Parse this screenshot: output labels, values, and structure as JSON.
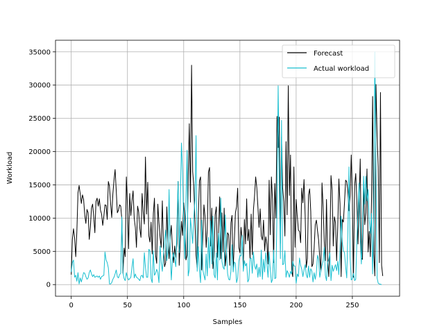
{
  "chart_data": {
    "type": "line",
    "title": "",
    "xlabel": "Samples",
    "ylabel": "Workload",
    "xlim": [
      -14,
      292
    ],
    "ylim": [
      -1750,
      36750
    ],
    "xticks": [
      0,
      50,
      100,
      150,
      200,
      250
    ],
    "xtick_labels": [
      "0",
      "50",
      "100",
      "150",
      "200",
      "250"
    ],
    "yticks": [
      0,
      5000,
      10000,
      15000,
      20000,
      25000,
      30000,
      35000
    ],
    "ytick_labels": [
      "0",
      "5000",
      "10000",
      "15000",
      "20000",
      "25000",
      "30000",
      "35000"
    ],
    "grid": true,
    "legend_position": "upper-right",
    "series": [
      {
        "name": "Forecast",
        "color": "#000000",
        "values": [
          1500,
          6800,
          8400,
          7000,
          4200,
          8000,
          13800,
          14900,
          13600,
          12200,
          13500,
          12800,
          10500,
          9200,
          11300,
          10800,
          6800,
          8600,
          11500,
          12100,
          10200,
          7800,
          12500,
          13000,
          11800,
          12900,
          11200,
          10600,
          8900,
          10300,
          12000,
          11900,
          9800,
          15500,
          14800,
          12200,
          10100,
          13600,
          15700,
          17300,
          14200,
          10800,
          11200,
          12000,
          11800,
          9800,
          1700,
          5500,
          4200,
          16200,
          11900,
          5400,
          13700,
          10400,
          12600,
          14100,
          10000,
          8600,
          5600,
          11800,
          10900,
          8400,
          7100,
          13700,
          10900,
          9100,
          19200,
          10600,
          15400,
          7300,
          6400,
          9400,
          4600,
          10700,
          13000,
          4400,
          3200,
          12100,
          9300,
          7100,
          5600,
          12600,
          5800,
          2700,
          3300,
          11700,
          6500,
          3900,
          7200,
          8900,
          5400,
          3300,
          5800,
          4100,
          6200,
          15500,
          2900,
          6500,
          9500,
          7400,
          12300,
          10200,
          3700,
          4400,
          16300,
          24200,
          12400,
          33000,
          17000,
          14800,
          9600,
          4400,
          2600,
          9900,
          15600,
          16200,
          2200,
          7300,
          12000,
          10200,
          5600,
          8300,
          16900,
          17600,
          5800,
          11500,
          2400,
          4200,
          10500,
          11700,
          4100,
          8200,
          13200,
          3900,
          10800,
          4900,
          11500,
          2800,
          4600,
          7800,
          7500,
          2900,
          9300,
          10400,
          2300,
          6400,
          10800,
          11700,
          14500,
          5600,
          4800,
          8600,
          6700,
          2900,
          9800,
          6100,
          12900,
          6600,
          8300,
          3900,
          10600,
          4500,
          11200,
          13300,
          16200,
          14600,
          11700,
          8600,
          11400,
          7300,
          6700,
          9700,
          5100,
          7200,
          6100,
          3100,
          15700,
          7500,
          16200,
          12800,
          3300,
          15200,
          10000,
          25300,
          20600,
          25200,
          6200,
          22200,
          14600,
          12500,
          7300,
          21500,
          10500,
          29900,
          13400,
          19500,
          2100,
          1200,
          17700,
          5600,
          12800,
          10300,
          8200,
          8000,
          6300,
          14500,
          12300,
          15800,
          10500,
          2600,
          3900,
          13500,
          14400,
          11000,
          2700,
          3100,
          5500,
          9000,
          9700,
          8100,
          6700,
          4000,
          2000,
          15300,
          11700,
          6500,
          3600,
          12800,
          3500,
          1200,
          6100,
          16400,
          14200,
          5800,
          10200,
          9300,
          3600,
          8700,
          15900,
          12200,
          1200,
          9800,
          9400,
          12300,
          15700,
          15500,
          14000,
          11100,
          13400,
          19500,
          12700,
          1100,
          14900,
          16700,
          12600,
          6100,
          12400,
          18900,
          4000,
          3800,
          15100,
          9000,
          10800,
          17400,
          4900,
          8000,
          4200,
          12500,
          28300,
          4700,
          1300,
          30100,
          22300,
          17700,
          3300,
          28900,
          2900,
          1300
        ]
      },
      {
        "name": "Actual workload",
        "color": "#17becf",
        "values": [
          1900,
          3300,
          3700,
          1100,
          1400,
          500,
          1800,
          100,
          1000,
          400,
          1100,
          1800,
          1700,
          1200,
          800,
          1000,
          1800,
          2200,
          1600,
          1200,
          1500,
          1100,
          1200,
          1300,
          1100,
          1300,
          800,
          1200,
          1300,
          1400,
          4900,
          3700,
          3300,
          2500,
          100,
          100,
          300,
          800,
          1100,
          1600,
          2200,
          1200,
          1000,
          1500,
          1700,
          10200,
          1800,
          900,
          600,
          1800,
          1100,
          700,
          900,
          1100,
          2600,
          3900,
          1000,
          1600,
          1100,
          1000,
          800,
          600,
          1300,
          1400,
          1000,
          4800,
          2600,
          1100,
          1100,
          5300,
          5100,
          900,
          300,
          5100,
          1400,
          1700,
          2300,
          1800,
          300,
          5800,
          3300,
          2000,
          4400,
          6600,
          8200,
          3600,
          5100,
          14300,
          4800,
          700,
          3900,
          4800,
          3800,
          2700,
          8700,
          15500,
          4800,
          12500,
          21300,
          17000,
          9200,
          3900,
          12700,
          20200,
          1300,
          2300,
          10000,
          8200,
          6200,
          10100,
          12700,
          22400,
          2000,
          5700,
          2100,
          300,
          9700,
          2200,
          1400,
          700,
          4600,
          1300,
          7100,
          2500,
          9600,
          3100,
          10300,
          1500,
          1000,
          4800,
          700,
          7700,
          3700,
          13000,
          3500,
          2600,
          2300,
          10500,
          5500,
          1700,
          800,
          700,
          2000,
          6000,
          1900,
          3400,
          3200,
          300,
          1000,
          3500,
          4400,
          4300,
          7400,
          2000,
          3600,
          2800,
          3200,
          400,
          800,
          3900,
          4000,
          1700,
          4900,
          2900,
          2300,
          3100,
          1100,
          2600,
          1200,
          5200,
          800,
          3800,
          1900,
          4800,
          3200,
          1100,
          4900,
          2300,
          300,
          800,
          5200,
          900,
          1000,
          11300,
          29900,
          15800,
          3900,
          24700,
          3000,
          3100,
          5100,
          1100,
          2100,
          1700,
          1100,
          2000,
          1600,
          3500,
          2800,
          2800,
          200,
          1600,
          1200,
          4000,
          2900,
          2300,
          1200,
          2200,
          3000,
          1500,
          1000,
          2800,
          1100,
          2400,
          2000,
          400,
          1800,
          800,
          1800,
          4400,
          3800,
          1100,
          2100,
          2900,
          3600,
          5600,
          1400,
          600,
          3300,
          3800,
          4800,
          600,
          2900,
          2000,
          2500,
          3000,
          2100,
          3500,
          1500,
          5000,
          10300,
          6400,
          5100,
          4800,
          2700,
          1000,
          8000,
          17700,
          4100,
          700,
          900,
          1700,
          600,
          800,
          6500,
          11000,
          15300,
          7000,
          3100,
          8000,
          16300,
          12100,
          16300,
          12600,
          14300,
          9600,
          7700,
          10700,
          1600,
          10100,
          35000,
          16400,
          1000,
          200,
          100,
          50,
          0
        ]
      }
    ]
  }
}
